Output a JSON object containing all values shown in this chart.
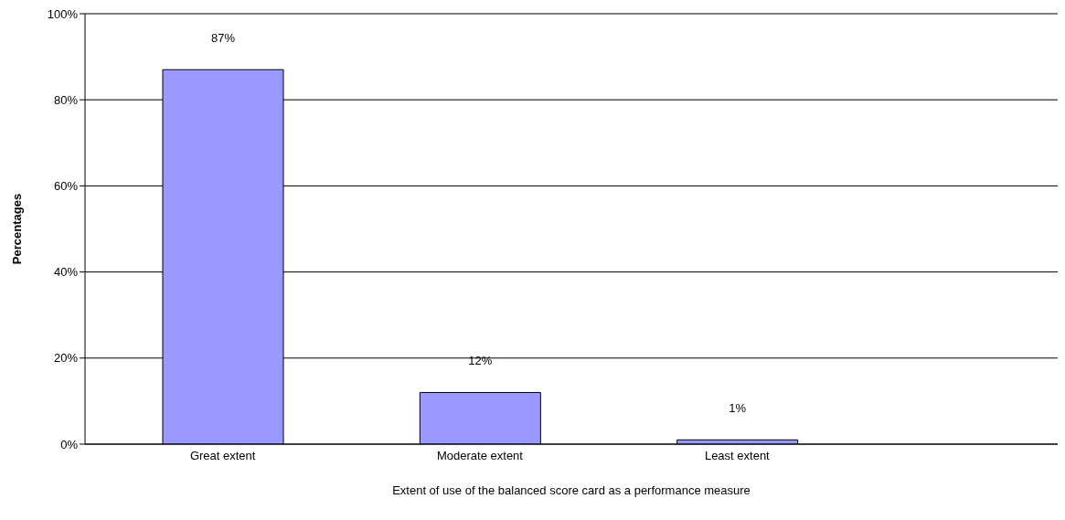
{
  "chart_data": {
    "type": "bar",
    "xlabel": "Extent of use of the balanced score card as a performance measure",
    "ylabel": "Percentages",
    "categories": [
      "Great extent",
      "Moderate extent",
      "Least extent"
    ],
    "values": [
      87,
      12,
      1
    ],
    "value_labels": [
      "87%",
      "12%",
      "1%"
    ],
    "color": "#9999ff",
    "ylim": [
      0,
      100
    ],
    "yticks": [
      {
        "value": 0,
        "label": "0%"
      },
      {
        "value": 20,
        "label": "20%"
      },
      {
        "value": 40,
        "label": "40%"
      },
      {
        "value": 60,
        "label": "60%"
      },
      {
        "value": 80,
        "label": "80%"
      },
      {
        "value": 100,
        "label": "100%"
      }
    ],
    "grid": "y",
    "legend": false
  }
}
